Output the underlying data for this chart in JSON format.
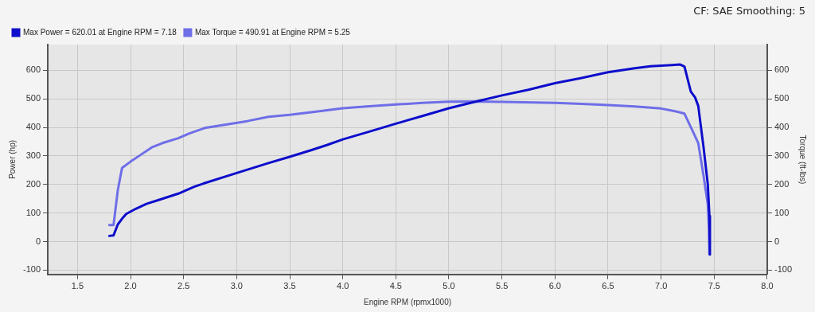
{
  "chart_data": {
    "type": "line",
    "annotations": [
      "CF: SAE Smoothing: 5"
    ],
    "xlabel": "Engine RPM (rpmx1000)",
    "ylabel": "Power (hp)",
    "y2label": "Torque (ft-lbs)",
    "xlim": [
      1.22,
      8.0
    ],
    "xticks": [
      {
        "value": 1.5,
        "label": "1.5"
      },
      {
        "value": 2,
        "label": "2.0"
      },
      {
        "value": 2.5,
        "label": "2.5"
      },
      {
        "value": 3,
        "label": "3.0"
      },
      {
        "value": 3.5,
        "label": "3.5"
      },
      {
        "value": 4,
        "label": "4.0"
      },
      {
        "value": 4.5,
        "label": "4.5"
      },
      {
        "value": 5,
        "label": "5.0"
      },
      {
        "value": 5.5,
        "label": "5.5"
      },
      {
        "value": 6,
        "label": "6.0"
      },
      {
        "value": 6.5,
        "label": "6.5"
      },
      {
        "value": 7,
        "label": "7.0"
      },
      {
        "value": 7.5,
        "label": "7.5"
      },
      {
        "value": 8,
        "label": "8.0"
      }
    ],
    "ylim": [
      -115,
      690
    ],
    "yticks": [
      -100,
      0,
      100,
      200,
      300,
      400,
      500,
      600
    ],
    "y2lim": [
      -115,
      690
    ],
    "y2ticks": [
      -100,
      0,
      100,
      200,
      300,
      400,
      500,
      600
    ],
    "grid": true,
    "legend": "top left",
    "marker": "none",
    "line_style": "solid",
    "series": [
      {
        "name": "Max Power = 620.01 at Engine RPM = 7.18",
        "color": "#0d0dcc",
        "x": [
          1.8,
          1.84,
          1.88,
          1.92,
          1.96,
          2.05,
          2.15,
          2.3,
          2.45,
          2.6,
          2.7,
          3.0,
          3.3,
          3.5,
          3.7,
          3.85,
          4.0,
          4.25,
          4.5,
          4.75,
          5.0,
          5.25,
          5.5,
          5.75,
          6.0,
          6.25,
          6.5,
          6.75,
          6.9,
          7.0,
          7.1,
          7.18,
          7.22,
          7.28,
          7.32,
          7.35,
          7.4,
          7.44,
          7.455,
          7.46
        ],
        "values": [
          20,
          22,
          60,
          80,
          97,
          115,
          132,
          150,
          168,
          192,
          205,
          240,
          275,
          297,
          320,
          338,
          358,
          385,
          413,
          440,
          467,
          490,
          512,
          532,
          555,
          573,
          593,
          607,
          614,
          616,
          618,
          620,
          613,
          525,
          505,
          475,
          330,
          200,
          90,
          -45
        ]
      },
      {
        "name": "Max Torque = 490.91 at Engine RPM = 5.25",
        "color": "#6e6ee8",
        "axis": "y2",
        "x": [
          1.8,
          1.84,
          1.88,
          1.92,
          2.0,
          2.1,
          2.2,
          2.3,
          2.45,
          2.55,
          2.7,
          2.9,
          3.1,
          3.3,
          3.5,
          3.75,
          4.0,
          4.25,
          4.5,
          4.75,
          5.0,
          5.25,
          5.5,
          6.0,
          6.25,
          6.5,
          6.75,
          7.0,
          7.15,
          7.22,
          7.3,
          7.35,
          7.4,
          7.44,
          7.45,
          7.455
        ],
        "values": [
          58,
          58,
          180,
          258,
          280,
          305,
          330,
          345,
          362,
          378,
          398,
          410,
          422,
          437,
          444,
          455,
          467,
          474,
          480,
          486,
          490,
          491,
          489,
          486,
          482,
          478,
          473,
          466,
          455,
          448,
          385,
          345,
          230,
          130,
          50,
          -45
        ]
      }
    ]
  }
}
